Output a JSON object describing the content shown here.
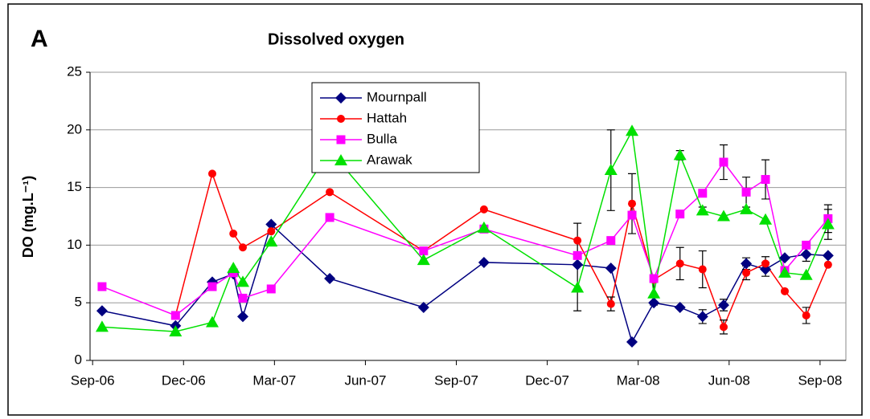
{
  "chart_data": {
    "type": "line",
    "panel": "A",
    "title": "Dissolved oxygen",
    "y_label": "DO (mg.L⁻¹)",
    "x": [
      2006.693,
      2006.895,
      2006.996,
      2007.054,
      2007.08,
      2007.158,
      2007.319,
      2007.577,
      2007.743,
      2008.0,
      2008.092,
      2008.15,
      2008.21,
      2008.282,
      2008.344,
      2008.402,
      2008.464,
      2008.517,
      2008.57,
      2008.629,
      2008.689
    ],
    "xlim": [
      2006.66,
      2008.738
    ],
    "xticks": [
      {
        "value": 2006.667,
        "label": "Sep-06"
      },
      {
        "value": 2006.917,
        "label": "Dec-06"
      },
      {
        "value": 2007.167,
        "label": "Mar-07"
      },
      {
        "value": 2007.417,
        "label": "Jun-07"
      },
      {
        "value": 2007.667,
        "label": "Sep-07"
      },
      {
        "value": 2007.917,
        "label": "Dec-07"
      },
      {
        "value": 2008.167,
        "label": "Mar-08"
      },
      {
        "value": 2008.417,
        "label": "Jun-08"
      },
      {
        "value": 2008.667,
        "label": "Sep-08"
      }
    ],
    "ylim": [
      0,
      25
    ],
    "yticks": [
      0,
      5,
      10,
      15,
      20,
      25
    ],
    "grid": true,
    "legend": "upper center",
    "series": [
      {
        "name": "Mournpall",
        "color": "#000080",
        "marker": "diamond",
        "values": [
          4.3,
          3.0,
          6.8,
          7.5,
          3.8,
          11.8,
          7.1,
          4.6,
          8.5,
          8.3,
          8.0,
          1.6,
          5.0,
          4.6,
          3.8,
          4.8,
          8.4,
          7.9,
          8.9,
          9.2,
          9.1
        ],
        "errors": [
          null,
          null,
          null,
          null,
          null,
          null,
          null,
          null,
          null,
          null,
          null,
          null,
          null,
          null,
          0.6,
          0.5,
          0.5,
          0.6,
          null,
          0.6,
          null
        ]
      },
      {
        "name": "Hattah",
        "color": "#ff0000",
        "marker": "circle",
        "values": [
          null,
          3.9,
          16.2,
          11.0,
          9.8,
          11.2,
          14.6,
          9.5,
          13.1,
          10.4,
          4.9,
          13.6,
          7.0,
          8.4,
          7.9,
          2.9,
          7.6,
          8.4,
          6.0,
          3.9,
          8.3
        ],
        "errors": [
          null,
          null,
          null,
          null,
          null,
          null,
          null,
          null,
          null,
          1.5,
          0.6,
          2.6,
          null,
          1.4,
          1.6,
          0.6,
          0.6,
          0.6,
          null,
          0.7,
          null
        ]
      },
      {
        "name": "Bulla",
        "color": "#ff00ff",
        "marker": "square",
        "values": [
          6.4,
          3.9,
          6.4,
          7.6,
          5.4,
          6.2,
          12.4,
          9.5,
          11.4,
          9.1,
          10.4,
          12.6,
          7.1,
          12.7,
          14.5,
          17.2,
          14.6,
          15.7,
          7.8,
          10.0,
          12.3
        ],
        "errors": [
          null,
          null,
          null,
          null,
          null,
          null,
          null,
          null,
          null,
          null,
          null,
          null,
          null,
          null,
          null,
          1.5,
          1.3,
          1.7,
          null,
          null,
          1.2
        ]
      },
      {
        "name": "Arawak",
        "color": "#00e000",
        "marker": "triangle",
        "values": [
          2.9,
          2.5,
          3.3,
          8.0,
          6.8,
          10.3,
          18.2,
          8.7,
          11.5,
          6.3,
          16.5,
          19.9,
          5.8,
          17.8,
          13.0,
          12.5,
          13.1,
          12.2,
          7.6,
          7.4,
          11.8
        ],
        "errors": [
          null,
          null,
          null,
          null,
          null,
          null,
          null,
          null,
          null,
          2.0,
          3.5,
          null,
          1.0,
          0.4,
          0.3,
          null,
          null,
          null,
          null,
          null,
          1.3
        ]
      }
    ]
  }
}
